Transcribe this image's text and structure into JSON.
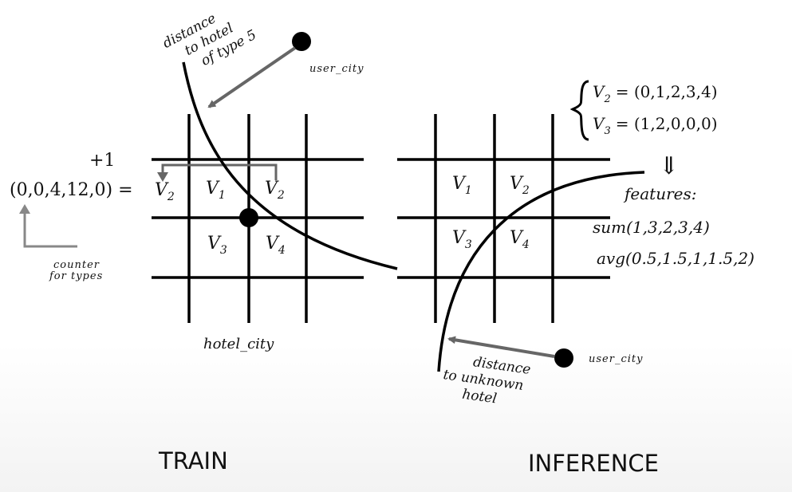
{
  "train": {
    "heading": "TRAIN",
    "plus_one": "+1",
    "counter_vector": "(0,0,4,12,0) =",
    "counter_target_cell": "V",
    "counter_target_sub": "2",
    "counter_label_line1": "counter",
    "counter_label_line2": "for types",
    "axis_label": "hotel_city",
    "user_label": "user_city",
    "curve_label": [
      "distance",
      "to hotel",
      "of type 5"
    ],
    "cells": [
      {
        "name": "V",
        "sub": "1"
      },
      {
        "name": "V",
        "sub": "2"
      },
      {
        "name": "V",
        "sub": "3"
      },
      {
        "name": "V",
        "sub": "4"
      }
    ]
  },
  "inference": {
    "heading": "INFERENCE",
    "user_label": "user_city",
    "curve_label": [
      "distance",
      "to unknown",
      "hotel"
    ],
    "cells": [
      {
        "name": "V",
        "sub": "1"
      },
      {
        "name": "V",
        "sub": "2"
      },
      {
        "name": "V",
        "sub": "3"
      },
      {
        "name": "V",
        "sub": "4"
      }
    ],
    "vectors": [
      {
        "name": "V",
        "sub": "2",
        "value": "= (0,1,2,3,4)"
      },
      {
        "name": "V",
        "sub": "3",
        "value": "= (1,2,0,0,0)"
      }
    ],
    "implies": "⇓",
    "features_label": "features:",
    "feature_sum": "sum(1,3,2,3,4)",
    "feature_avg": "avg(0.5,1.5,1,1.5,2)"
  }
}
